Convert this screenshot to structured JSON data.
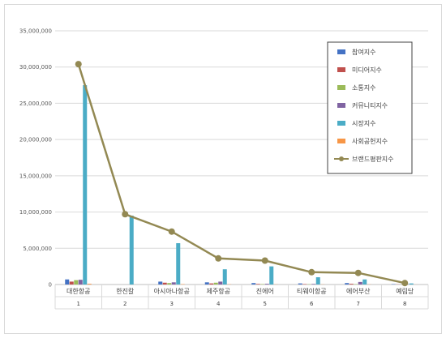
{
  "chart_data": {
    "type": "bar",
    "categories": [
      "대한항공",
      "한진칼",
      "아시아나항공",
      "제주항공",
      "진에어",
      "티웨이항공",
      "에어부산",
      "예림당"
    ],
    "category_index": [
      "1",
      "2",
      "3",
      "4",
      "5",
      "6",
      "7",
      "8"
    ],
    "ylim": [
      0,
      35000000
    ],
    "yticks": [
      "0",
      "5,000,000",
      "10,000,000",
      "15,000,000",
      "20,000,000",
      "25,000,000",
      "30,000,000",
      "35,000,000"
    ],
    "ytick_values": [
      0,
      5000000,
      10000000,
      15000000,
      20000000,
      25000000,
      30000000,
      35000000
    ],
    "grid": true,
    "legend_position": "top-right",
    "series": [
      {
        "name": "참여지수",
        "kind": "bar",
        "color": "#4472c4",
        "values": [
          700000,
          0,
          400000,
          300000,
          200000,
          150000,
          200000,
          50000
        ]
      },
      {
        "name": "미디어지수",
        "kind": "bar",
        "color": "#c0504d",
        "values": [
          400000,
          0,
          250000,
          150000,
          80000,
          60000,
          100000,
          20000
        ]
      },
      {
        "name": "소통지수",
        "kind": "bar",
        "color": "#9bbb59",
        "values": [
          600000,
          0,
          200000,
          250000,
          60000,
          40000,
          50000,
          10000
        ]
      },
      {
        "name": "커뮤니티지수",
        "kind": "bar",
        "color": "#8064a2",
        "values": [
          650000,
          0,
          300000,
          400000,
          100000,
          80000,
          350000,
          30000
        ]
      },
      {
        "name": "시장지수",
        "kind": "bar",
        "color": "#4bacc6",
        "values": [
          27500000,
          9500000,
          5700000,
          2100000,
          2500000,
          1000000,
          700000,
          150000
        ]
      },
      {
        "name": "사회공헌지수",
        "kind": "bar",
        "color": "#f79646",
        "values": [
          100000,
          0,
          50000,
          30000,
          20000,
          20000,
          20000,
          5000
        ]
      },
      {
        "name": "브랜드평판지수",
        "kind": "line",
        "color": "#938953",
        "values": [
          30400000,
          9700000,
          7300000,
          3600000,
          3300000,
          1700000,
          1600000,
          200000
        ]
      }
    ]
  }
}
